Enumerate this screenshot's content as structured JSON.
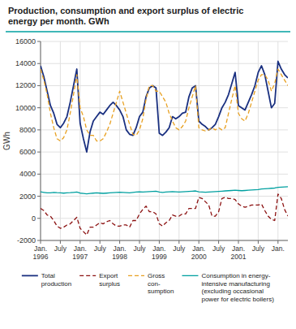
{
  "chart_data": {
    "type": "line",
    "title": "Production, consumption and export surplus of electric\nenergy per month. GWh",
    "y_label": "GWh",
    "ylim": [
      -2000,
      16000
    ],
    "yticks": [
      -2000,
      0,
      2000,
      4000,
      6000,
      8000,
      10000,
      12000,
      14000,
      16000
    ],
    "grid": true,
    "legend": "bottom",
    "categories": [
      "Jan.\n1996",
      null,
      null,
      null,
      null,
      null,
      "July",
      null,
      null,
      null,
      null,
      null,
      "Jan.\n1997",
      null,
      null,
      null,
      null,
      null,
      "July",
      null,
      null,
      null,
      null,
      null,
      "Jan.\n1998",
      null,
      null,
      null,
      null,
      null,
      "July",
      null,
      null,
      null,
      null,
      null,
      "Jan.\n1999",
      null,
      null,
      null,
      null,
      null,
      "July",
      null,
      null,
      null,
      null,
      null,
      "Jan.\n2000",
      null,
      null,
      null,
      null,
      null,
      "July",
      null,
      null,
      null,
      null,
      null,
      "Jan.\n2001",
      null,
      null,
      null,
      null,
      null,
      "July",
      null,
      null,
      null,
      null,
      null,
      "Jan.",
      null,
      null,
      null
    ],
    "series": [
      {
        "name": "Total\nproduction",
        "color": "#1a3080",
        "line_style": "solid",
        "values": [
          13800,
          12800,
          11500,
          10200,
          9500,
          8500,
          8200,
          8600,
          9200,
          10500,
          12000,
          13500,
          8600,
          7200,
          6000,
          7800,
          8800,
          9200,
          9600,
          9400,
          9800,
          10200,
          10500,
          10200,
          9800,
          9200,
          8000,
          7600,
          7500,
          8200,
          9200,
          9600,
          11000,
          11800,
          12000,
          11800,
          7700,
          7500,
          7800,
          8200,
          9200,
          9000,
          9200,
          9500,
          9600,
          11000,
          11800,
          12000,
          8800,
          8500,
          8300,
          8000,
          8200,
          8500,
          9200,
          10000,
          10500,
          11200,
          12200,
          13200,
          10200,
          10000,
          9800,
          10500,
          11200,
          12000,
          13200,
          13800,
          13000,
          11500,
          10000,
          10400,
          14200,
          13500,
          13000,
          12700
        ]
      },
      {
        "name": "Export\nsurplus",
        "color": "#8b1010",
        "line_style": "dashed",
        "values": [
          900,
          700,
          300,
          200,
          -200,
          -700,
          -900,
          -800,
          -600,
          -500,
          -200,
          100,
          -900,
          -1200,
          -1500,
          -800,
          -800,
          -600,
          -400,
          -500,
          -300,
          -200,
          -500,
          -700,
          -700,
          -600,
          -600,
          -800,
          -200,
          -200,
          400,
          800,
          1100,
          600,
          600,
          400,
          -500,
          -700,
          -400,
          -200,
          300,
          200,
          200,
          400,
          400,
          900,
          900,
          900,
          1900,
          1800,
          1500,
          1200,
          200,
          200,
          600,
          1800,
          1900,
          1800,
          1800,
          1700,
          1300,
          1100,
          1000,
          1100,
          1200,
          1200,
          1200,
          1300,
          700,
          200,
          -100,
          -200,
          2200,
          1800,
          800,
          200
        ]
      },
      {
        "name": "Gross\ncon-\nsumption",
        "color": "#e8a020",
        "line_style": "dashed",
        "values": [
          13500,
          12500,
          11200,
          9500,
          8200,
          7200,
          7000,
          7300,
          8000,
          9500,
          11200,
          13000,
          10000,
          9200,
          8000,
          7500,
          7500,
          7000,
          7000,
          7200,
          7800,
          8500,
          9500,
          10500,
          11500,
          10500,
          9500,
          8500,
          7600,
          7500,
          8000,
          9000,
          10800,
          12000,
          12000,
          11500,
          11500,
          11000,
          10500,
          9500,
          8800,
          8200,
          8000,
          8300,
          8800,
          10000,
          11000,
          12000,
          8200,
          8000,
          7900,
          8000,
          8200,
          8000,
          8200,
          8000,
          8200,
          9500,
          10800,
          12000,
          9500,
          9000,
          8800,
          9500,
          10500,
          11500,
          12500,
          13000,
          13000,
          12500,
          11500,
          12200,
          13500,
          13000,
          12500,
          12000
        ]
      },
      {
        "name": "Consumption in energy-\nintensive manufacturing\n(excluding occasional\npower for electric boilers)",
        "color": "#00a0a0",
        "line_style": "solid",
        "values": [
          2400,
          2350,
          2300,
          2300,
          2350,
          2320,
          2300,
          2280,
          2310,
          2320,
          2350,
          2380,
          2280,
          2250,
          2220,
          2250,
          2280,
          2300,
          2280,
          2260,
          2280,
          2300,
          2320,
          2340,
          2360,
          2340,
          2320,
          2300,
          2350,
          2380,
          2400,
          2380,
          2400,
          2420,
          2440,
          2460,
          2380,
          2350,
          2380,
          2400,
          2420,
          2400,
          2380,
          2400,
          2420,
          2440,
          2460,
          2480,
          2400,
          2380,
          2360,
          2380,
          2400,
          2420,
          2440,
          2460,
          2480,
          2500,
          2520,
          2540,
          2520,
          2500,
          2520,
          2540,
          2560,
          2580,
          2600,
          2650,
          2680,
          2700,
          2720,
          2740,
          2800,
          2820,
          2840,
          2860
        ]
      }
    ]
  }
}
